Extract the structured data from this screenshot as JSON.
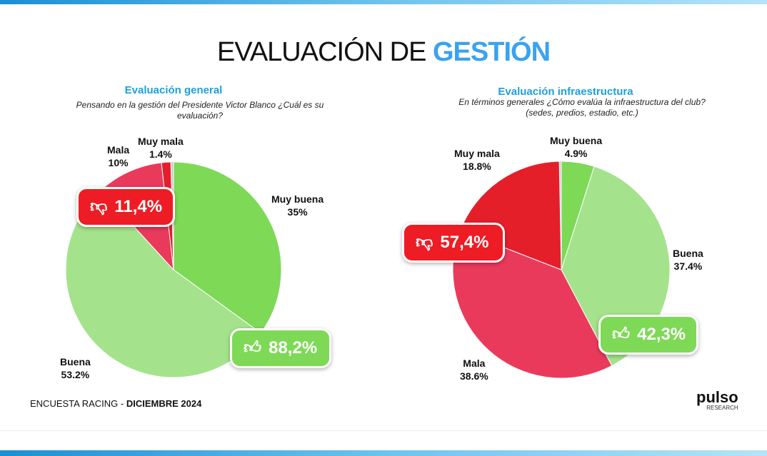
{
  "title": {
    "main": "EVALUACIÓN DE ",
    "accent": "GESTIÓN"
  },
  "chart_data": [
    {
      "type": "pie",
      "title": "Evaluación general",
      "question": "Pensando en la gestión del Presidente Victor Blanco ¿Cuál es su evaluación?",
      "slices": [
        {
          "label": "Muy buena",
          "value": 35,
          "text": "35%",
          "color": "#7ed957"
        },
        {
          "label": "Buena",
          "value": 53.2,
          "text": "53.2%",
          "color": "#a4e38b"
        },
        {
          "label": "Mala",
          "value": 10,
          "text": "10%",
          "color": "#ea3a5c"
        },
        {
          "label": "Muy mala",
          "value": 1.4,
          "text": "1.4%",
          "color": "#e51f2a"
        }
      ],
      "negative_total": "11,4%",
      "positive_total": "88,2%"
    },
    {
      "type": "pie",
      "title": "Evaluación infraestructura",
      "question": "En términos generales ¿Cómo evalúa la infraestructura del club? (sedes, predios, estadio, etc.)",
      "slices": [
        {
          "label": "Muy buena",
          "value": 4.9,
          "text": "4.9%",
          "color": "#7ed957"
        },
        {
          "label": "Buena",
          "value": 37.4,
          "text": "37.4%",
          "color": "#a4e38b"
        },
        {
          "label": "Mala",
          "value": 38.6,
          "text": "38.6%",
          "color": "#ea3a5c"
        },
        {
          "label": "Muy mala",
          "value": 18.8,
          "text": "18.8%",
          "color": "#e51f2a"
        }
      ],
      "negative_total": "57,4%",
      "positive_total": "42,3%"
    }
  ],
  "footer": {
    "survey": "ENCUESTA RACING  - ",
    "date": "DICIEMBRE 2024"
  },
  "logo": {
    "name": "pulso",
    "tag": "RESEARCH"
  }
}
